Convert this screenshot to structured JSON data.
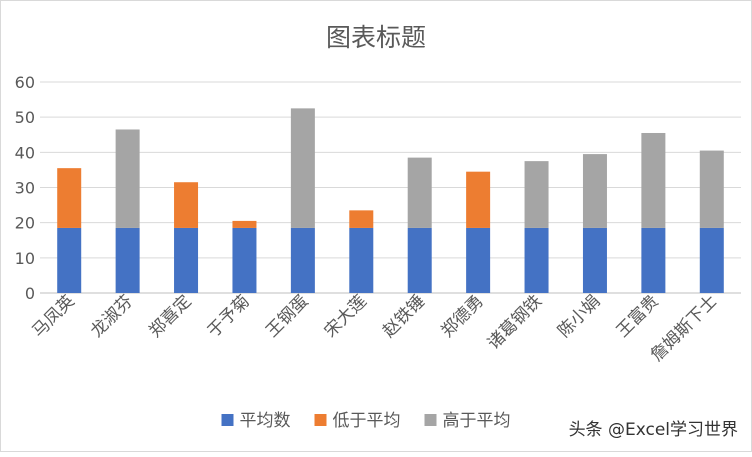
{
  "chart_data": {
    "type": "bar",
    "stacked": true,
    "title": "图表标题",
    "categories": [
      "马凤英",
      "龙淑芬",
      "郑喜定",
      "于予菊",
      "王钢蛋",
      "宋大莲",
      "赵铁锤",
      "郑德勇",
      "诸葛钢铁",
      "陈小娟",
      "王富贵",
      "詹姆斯下士"
    ],
    "series": [
      {
        "name": "平均数",
        "color": "#4472C4",
        "values": [
          18.5,
          18.5,
          18.5,
          18.5,
          18.5,
          18.5,
          18.5,
          18.5,
          18.5,
          18.5,
          18.5,
          18.5
        ]
      },
      {
        "name": "低于平均",
        "color": "#ED7D31",
        "values": [
          17,
          0,
          13,
          2,
          0,
          5,
          0,
          16,
          0,
          0,
          0,
          0
        ]
      },
      {
        "name": "高于平均",
        "color": "#A5A5A5",
        "values": [
          0,
          28,
          0,
          0,
          34,
          0,
          20,
          0,
          19,
          21,
          27,
          22
        ]
      }
    ],
    "ylim": [
      0,
      60
    ],
    "yticks": [
      0,
      10,
      20,
      30,
      40,
      50,
      60
    ],
    "grid": true,
    "legend_position": "bottom"
  },
  "watermark": "头条 @Excel学习世界"
}
